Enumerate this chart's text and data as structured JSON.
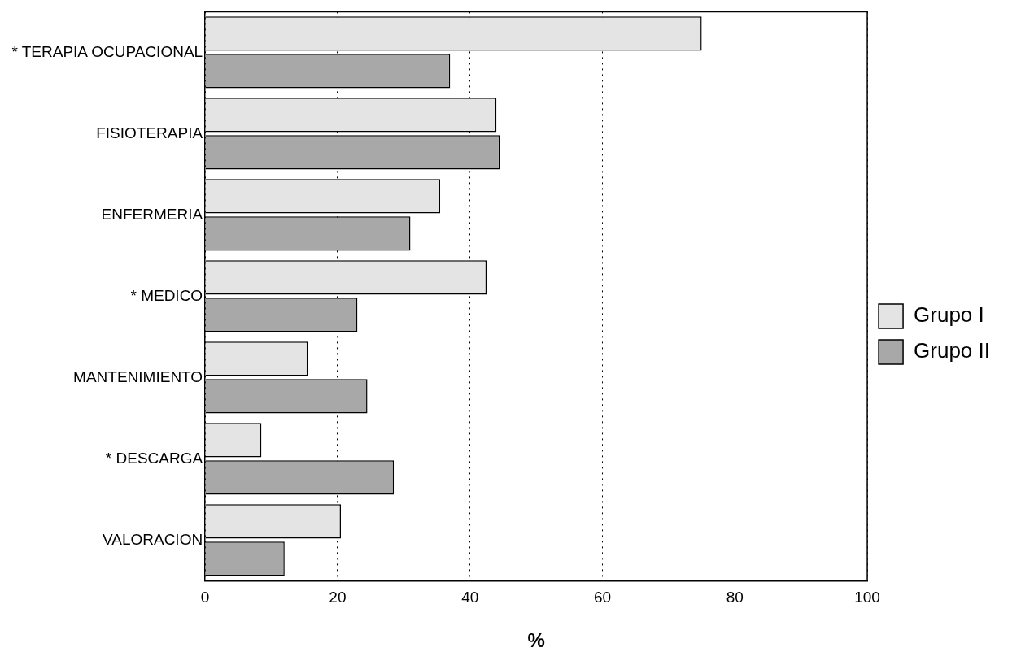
{
  "chart_data": {
    "type": "bar",
    "orientation": "horizontal",
    "xlabel": "%",
    "categories": [
      "* TERAPIA OCUPACIONAL",
      "FISIOTERAPIA",
      "ENFERMERIA",
      "* MEDICO",
      "MANTENIMIENTO",
      "* DESCARGA",
      "VALORACION"
    ],
    "series": [
      {
        "name": "Grupo I",
        "color": "#e4e4e4",
        "values": [
          75,
          44,
          35.5,
          42.5,
          15.5,
          8.5,
          20.5
        ]
      },
      {
        "name": "Grupo II",
        "color": "#a8a8a8",
        "values": [
          37,
          44.5,
          31,
          23,
          24.5,
          28.5,
          12
        ]
      }
    ],
    "xlim": [
      0,
      100
    ],
    "xticks": [
      0,
      20,
      40,
      60,
      80,
      100
    ],
    "grid": "x",
    "legend": "right"
  }
}
